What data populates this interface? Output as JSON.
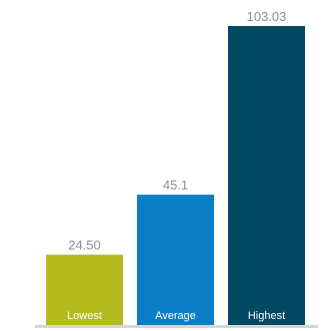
{
  "chart_data": {
    "type": "bar",
    "categories": [
      "Lowest",
      "Average",
      "Highest"
    ],
    "values_text": [
      "24.50",
      "45.1",
      "103.03"
    ],
    "series": [
      {
        "values": [
          24.5,
          45.1,
          103.03
        ]
      }
    ],
    "colors": [
      "#b3bb1e",
      "#0a7fc7",
      "#024a63"
    ],
    "baseline_color": "#d6d6d6",
    "ylim": [
      0,
      103.03
    ],
    "grid": false,
    "legend": "none",
    "labels": "category names inside bar bottoms, values above bars"
  }
}
